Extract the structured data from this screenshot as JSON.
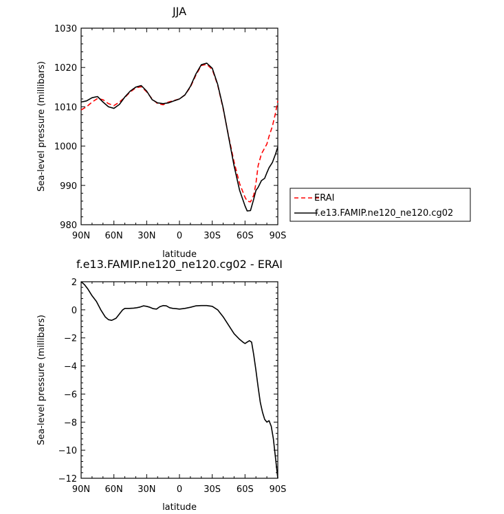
{
  "chart_data": [
    {
      "type": "line",
      "title": "JJA",
      "xlabel": "latitude",
      "ylabel": "Sea-level pressure (millibars)",
      "xlim": [
        90,
        -90
      ],
      "ylim": [
        980,
        1030
      ],
      "x_ticks": [
        90,
        60,
        30,
        0,
        -30,
        -60,
        -90
      ],
      "x_tick_labels": [
        "90N",
        "60N",
        "30N",
        "0",
        "30S",
        "60S",
        "90S"
      ],
      "y_ticks": [
        980,
        990,
        1000,
        1010,
        1020,
        1030
      ],
      "y_tick_labels": [
        "980",
        "990",
        "1000",
        "1010",
        "1020",
        "1030"
      ],
      "grid": false,
      "legend_placement": "right, outside plot",
      "series": [
        {
          "name": "ERAI",
          "color": "#ff0000",
          "dash": "dashed",
          "x": [
            90,
            85,
            80,
            75,
            70,
            65,
            60,
            55,
            50,
            45,
            40,
            35,
            30,
            25,
            20,
            15,
            10,
            5,
            0,
            -5,
            -10,
            -15,
            -20,
            -25,
            -30,
            -35,
            -40,
            -45,
            -50,
            -55,
            -60,
            -62,
            -65,
            -68,
            -70,
            -72,
            -75,
            -78,
            -80,
            -82,
            -85,
            -88,
            -90
          ],
          "y": [
            1009.2,
            1010.0,
            1011.2,
            1012.1,
            1011.8,
            1010.8,
            1010.3,
            1011.2,
            1012.4,
            1013.8,
            1014.8,
            1015.1,
            1013.8,
            1012.0,
            1010.8,
            1010.5,
            1011.2,
            1011.6,
            1012.0,
            1013.0,
            1015.0,
            1018.0,
            1020.5,
            1020.8,
            1019.5,
            1015.5,
            1009.5,
            1002.5,
            996.0,
            990.5,
            987.0,
            986.0,
            985.8,
            987.5,
            990.5,
            995.0,
            998.0,
            999.5,
            1000.5,
            1002.5,
            1005.0,
            1008.5,
            1011.5
          ]
        },
        {
          "name": "f.e13.FAMIP.ne120_ne120.cg02",
          "color": "#000000",
          "dash": "solid",
          "x": [
            90,
            85,
            80,
            75,
            70,
            65,
            60,
            55,
            50,
            45,
            40,
            35,
            30,
            25,
            20,
            15,
            10,
            5,
            0,
            -5,
            -10,
            -15,
            -20,
            -25,
            -30,
            -35,
            -40,
            -45,
            -50,
            -55,
            -60,
            -62,
            -65,
            -68,
            -70,
            -72,
            -75,
            -78,
            -80,
            -82,
            -85,
            -88,
            -90
          ],
          "y": [
            1011.2,
            1011.5,
            1012.3,
            1012.6,
            1011.2,
            1010.0,
            1009.6,
            1010.6,
            1012.5,
            1014.0,
            1015.0,
            1015.4,
            1014.0,
            1011.8,
            1011.0,
            1010.8,
            1011.0,
            1011.5,
            1012.0,
            1013.0,
            1015.2,
            1018.3,
            1020.7,
            1021.1,
            1019.8,
            1015.7,
            1009.7,
            1002.3,
            995.0,
            988.8,
            984.8,
            983.5,
            983.6,
            986.5,
            988.7,
            989.5,
            991.2,
            991.8,
            993.2,
            994.5,
            995.8,
            998.0,
            999.8
          ]
        }
      ]
    },
    {
      "type": "line",
      "title": "f.e13.FAMIP.ne120_ne120.cg02 - ERAI",
      "xlabel": "latitude",
      "ylabel": "Sea-level pressure (millibars)",
      "xlim": [
        90,
        -90
      ],
      "ylim": [
        -12,
        2
      ],
      "x_ticks": [
        90,
        60,
        30,
        0,
        -30,
        -60,
        -90
      ],
      "x_tick_labels": [
        "90N",
        "60N",
        "30N",
        "0",
        "30S",
        "60S",
        "90S"
      ],
      "y_ticks": [
        -12,
        -10,
        -8,
        -6,
        -4,
        -2,
        0,
        2
      ],
      "y_tick_labels": [
        "−12",
        "−10",
        "−8",
        "−6",
        "−4",
        "−2",
        "0",
        "2"
      ],
      "grid": false,
      "series": [
        {
          "color": "#000000",
          "dash": "solid",
          "x": [
            90,
            87,
            84,
            80,
            76,
            72,
            68,
            65,
            62,
            58,
            55,
            52,
            50,
            46,
            42,
            39,
            36,
            33,
            30,
            27,
            24,
            21,
            18,
            15,
            12,
            9,
            6,
            3,
            0,
            -5,
            -10,
            -15,
            -20,
            -25,
            -30,
            -35,
            -40,
            -45,
            -50,
            -55,
            -58,
            -60,
            -62,
            -64,
            -66,
            -68,
            -70,
            -72,
            -74,
            -76,
            -78,
            -80,
            -82,
            -84,
            -86,
            -88,
            -90
          ],
          "y": [
            2.0,
            1.8,
            1.5,
            1.0,
            0.6,
            0.0,
            -0.5,
            -0.7,
            -0.75,
            -0.6,
            -0.3,
            0.0,
            0.1,
            0.1,
            0.12,
            0.15,
            0.2,
            0.28,
            0.25,
            0.18,
            0.08,
            0.05,
            0.22,
            0.3,
            0.28,
            0.15,
            0.1,
            0.08,
            0.05,
            0.1,
            0.18,
            0.28,
            0.3,
            0.3,
            0.25,
            0.0,
            -0.5,
            -1.1,
            -1.7,
            -2.1,
            -2.3,
            -2.4,
            -2.3,
            -2.2,
            -2.3,
            -3.2,
            -4.3,
            -5.5,
            -6.6,
            -7.3,
            -7.8,
            -8.0,
            -7.9,
            -8.3,
            -9.2,
            -10.6,
            -12.0
          ]
        }
      ]
    }
  ]
}
